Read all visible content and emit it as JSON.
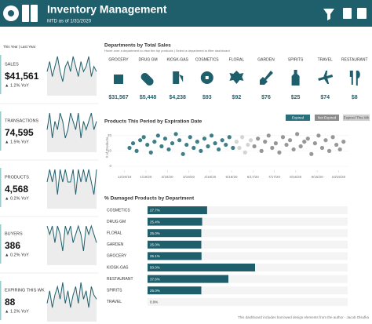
{
  "header": {
    "title": "Inventory Management",
    "subtitle": "MTD as of 1/31/2020"
  },
  "period_toggle": "This Year | Last Year",
  "kpis": {
    "items": [
      {
        "label": "SALES",
        "value": "$41,561",
        "yoy": "▲ 1.2% YoY",
        "trend": [
          6,
          8,
          5,
          7,
          9,
          6,
          4,
          7,
          8,
          6,
          9,
          7,
          5,
          8,
          6,
          7,
          9,
          5,
          7,
          6
        ]
      },
      {
        "label": "TRANSACTIONS",
        "value": "74,595",
        "yoy": "▲ 1.5% YoY",
        "trend": [
          7,
          9,
          6,
          8,
          7,
          9,
          8,
          6,
          7,
          9,
          8,
          7,
          9,
          6,
          8,
          7,
          8,
          9,
          7,
          8
        ]
      },
      {
        "label": "PRODUCTS",
        "value": "4,568",
        "yoy": "▲ 0.2% YoY",
        "trend": [
          8,
          9,
          8,
          9,
          7,
          9,
          8,
          9,
          8,
          8,
          9,
          7,
          9,
          8,
          9,
          8,
          9,
          8,
          7,
          9
        ]
      },
      {
        "label": "BUYERS",
        "value": "386",
        "yoy": "▲ 0.2% YoY",
        "trend": [
          9,
          8,
          9,
          7,
          9,
          8,
          6,
          9,
          8,
          9,
          7,
          8,
          9,
          8,
          6,
          9,
          8,
          9,
          8,
          7
        ]
      },
      {
        "label": "EXPIRING THIS WK",
        "value": "88",
        "yoy": "▲ 1.2% YoY",
        "trend": [
          4,
          7,
          3,
          6,
          8,
          5,
          9,
          4,
          7,
          3,
          6,
          8,
          4,
          9,
          5,
          7,
          3,
          8,
          6,
          5
        ]
      }
    ]
  },
  "departments": {
    "title": "Departments by Total Sales",
    "subtitle": "Hover over a department to view the top products | Select a department to filter dashboard",
    "items": [
      {
        "name": "GROCERY",
        "value": "$31,567"
      },
      {
        "name": "DRUG GM",
        "value": "$5,448"
      },
      {
        "name": "KIOSK-GAS",
        "value": "$4,238"
      },
      {
        "name": "COSMETICS",
        "value": "$93"
      },
      {
        "name": "FLORAL",
        "value": "$92"
      },
      {
        "name": "GARDEN",
        "value": "$76"
      },
      {
        "name": "SPIRITS",
        "value": "$25"
      },
      {
        "name": "TRAVEL",
        "value": "$74"
      },
      {
        "name": "RESTAURANT",
        "value": "$8"
      }
    ]
  },
  "chart_data": [
    {
      "type": "scatter",
      "title": "Products This Period by Expiration Date",
      "y_label": "# of Products",
      "xlim": [
        "2019-12-05",
        "2020-10-30"
      ],
      "ylim": [
        0,
        25
      ],
      "yticks": [
        0,
        10,
        20
      ],
      "xticks": [
        {
          "value": "2019-12-20",
          "label": "12/20/19"
        },
        {
          "value": "2020-01-19",
          "label": "1/19/20"
        },
        {
          "value": "2020-02-18",
          "label": "2/18/20"
        },
        {
          "value": "2020-03-19",
          "label": "3/19/20"
        },
        {
          "value": "2020-04-18",
          "label": "4/18/20"
        },
        {
          "value": "2020-05-18",
          "label": "5/18/20"
        },
        {
          "value": "2020-06-17",
          "label": "6/17/20"
        },
        {
          "value": "2020-07-17",
          "label": "7/17/20"
        },
        {
          "value": "2020-08-16",
          "label": "8/16/20"
        },
        {
          "value": "2020-09-15",
          "label": "9/15/20"
        },
        {
          "value": "2020-10-15",
          "label": "10/15/20"
        }
      ],
      "series": [
        {
          "name": "Expired",
          "color": "#2b6f7a",
          "x": [
            "2019-12-27",
            "2020-01-01",
            "2020-01-06",
            "2020-01-11",
            "2020-01-16",
            "2020-01-21",
            "2020-01-26",
            "2020-01-31",
            "2020-02-05",
            "2020-02-10",
            "2020-02-15",
            "2020-02-20",
            "2020-02-25",
            "2020-03-01",
            "2020-03-06",
            "2020-03-11",
            "2020-03-16",
            "2020-03-21",
            "2020-03-26",
            "2020-03-31",
            "2020-04-05",
            "2020-04-10",
            "2020-04-15",
            "2020-04-20",
            "2020-04-25",
            "2020-04-30",
            "2020-05-05",
            "2020-05-10",
            "2020-05-15",
            "2020-05-20"
          ],
          "values": [
            12,
            15,
            10,
            17,
            19,
            14,
            9,
            16,
            20,
            13,
            18,
            11,
            15,
            21,
            17,
            8,
            14,
            19,
            12,
            16,
            10,
            18,
            13,
            20,
            15,
            11,
            17,
            14,
            19,
            12
          ]
        },
        {
          "name": "Not Expired",
          "color": "#8c8c8c",
          "x": [
            "2020-06-19",
            "2020-06-24",
            "2020-06-29",
            "2020-07-04",
            "2020-07-09",
            "2020-07-14",
            "2020-07-19",
            "2020-07-24",
            "2020-07-29",
            "2020-08-03",
            "2020-08-08",
            "2020-08-13",
            "2020-08-18",
            "2020-08-23",
            "2020-08-28",
            "2020-09-02",
            "2020-09-07",
            "2020-09-12",
            "2020-09-17",
            "2020-09-22",
            "2020-09-27",
            "2020-10-02",
            "2020-10-07",
            "2020-10-12",
            "2020-10-17",
            "2020-10-22"
          ],
          "values": [
            13,
            18,
            10,
            16,
            20,
            12,
            15,
            9,
            19,
            14,
            17,
            11,
            21,
            13,
            16,
            18,
            8,
            15,
            20,
            12,
            17,
            10,
            19,
            14,
            11,
            16
          ]
        },
        {
          "name": "Expired This Wk",
          "color": "#cfcfcf",
          "x": [
            "2020-05-25",
            "2020-05-29",
            "2020-06-02",
            "2020-06-06",
            "2020-06-10",
            "2020-06-14"
          ],
          "values": [
            16,
            12,
            19,
            9,
            14,
            17
          ]
        }
      ]
    },
    {
      "type": "bar",
      "orientation": "horizontal",
      "title": "% Damaged Products by Department",
      "color": "#1f5f6b",
      "categories": [
        "COSMETICS",
        "DRUG GM",
        "FLORAL",
        "GARDEN",
        "GROCERY",
        "KIOSK-GAS",
        "RESTAURANT",
        "SPIRITS",
        "TRAVEL"
      ],
      "values": [
        27.7,
        25.4,
        25.0,
        25.0,
        25.1,
        50.0,
        37.6,
        25.0,
        0.0
      ],
      "value_labels": [
        "27.7%",
        "25.4%",
        "25.0%",
        "25.0%",
        "25.1%",
        "50.0%",
        "37.6%",
        "25.0%",
        "0.0%"
      ]
    }
  ],
  "footer": "This dashboard includes borrowed design elements from the author - Jacob Olsufka"
}
